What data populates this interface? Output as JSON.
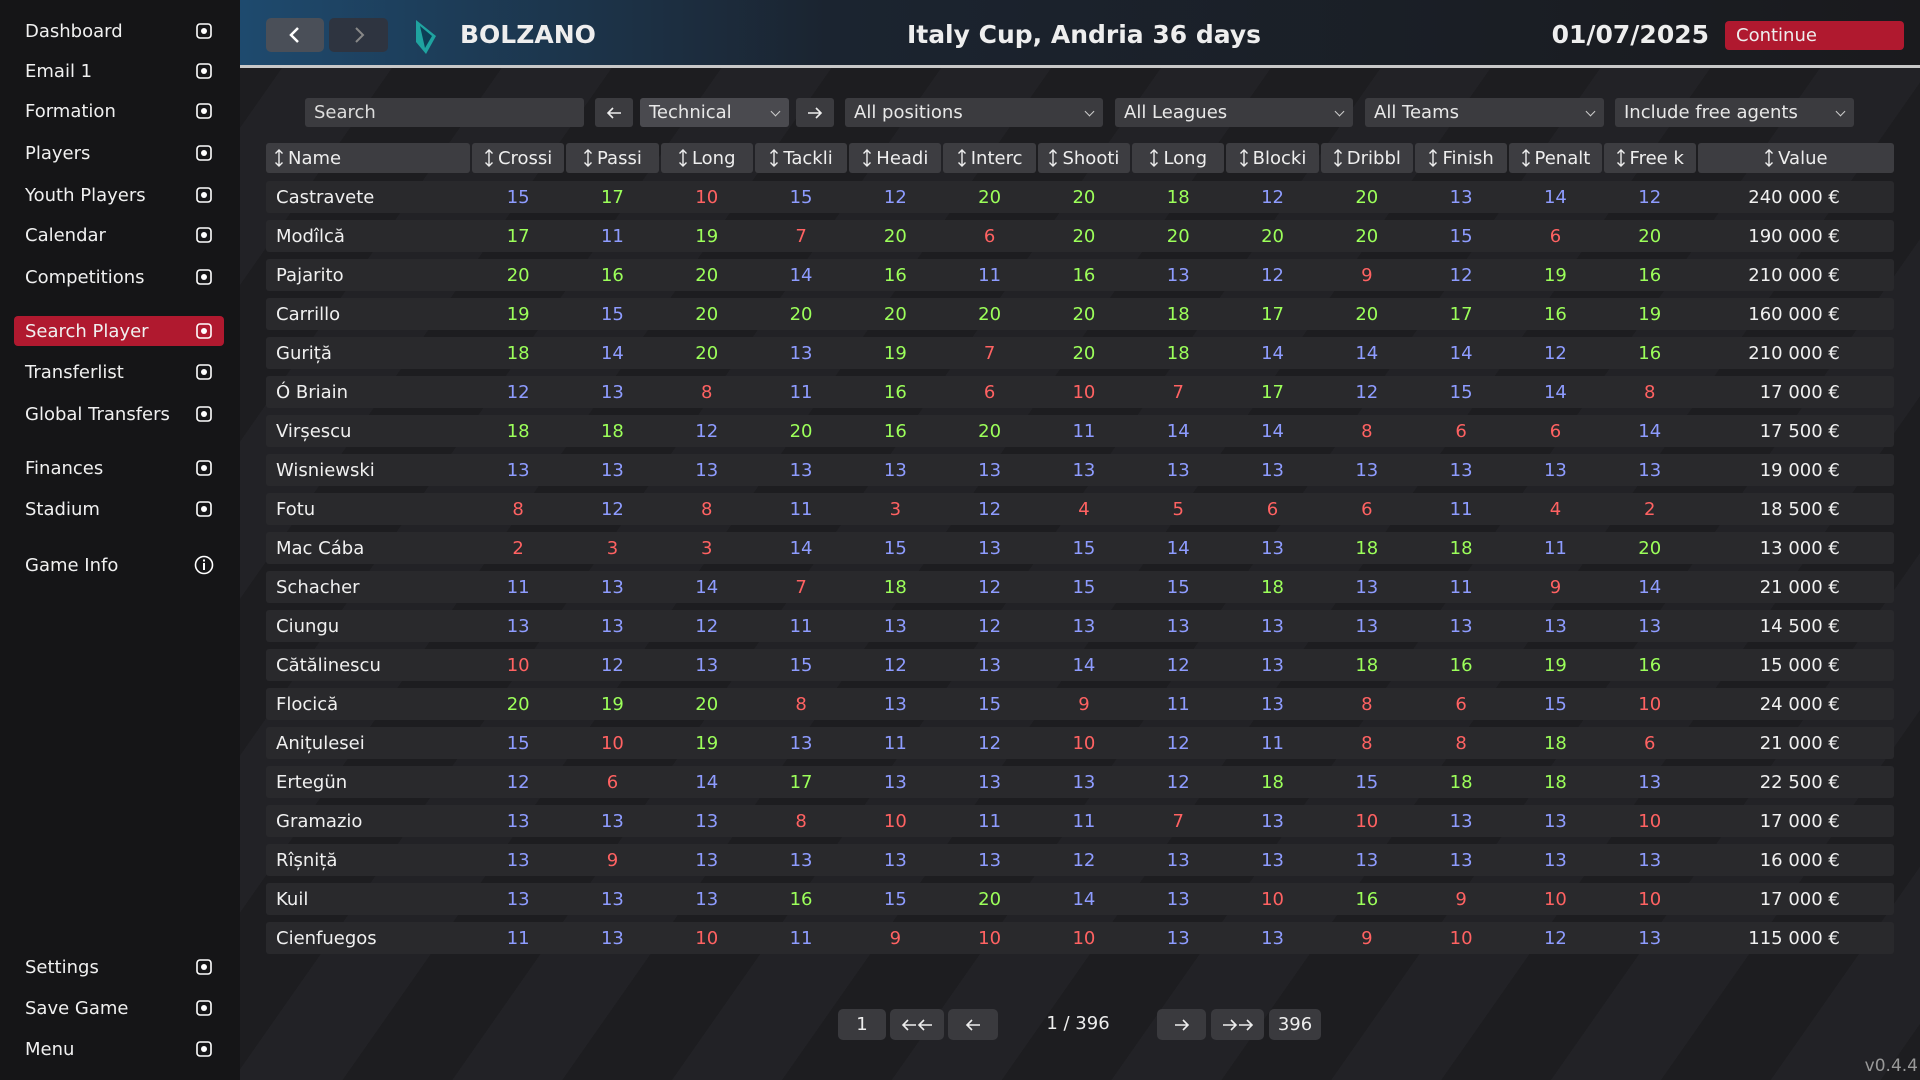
{
  "sidebar": {
    "menu": [
      "Dashboard",
      "Email 1",
      "Formation",
      "Players",
      "Youth Players",
      "Calendar",
      "Competitions",
      "Search Player",
      "Transferlist",
      "Global Transfers",
      "Finances",
      "Stadium",
      "Game Info"
    ],
    "footer": [
      "Settings",
      "Save Game",
      "Menu"
    ]
  },
  "header": {
    "team": "BOLZANO",
    "title": "Italy Cup, Andria 36 days",
    "date": "01/07/2025",
    "continue": "Continue"
  },
  "filters": {
    "search": "Search",
    "view": "Technical",
    "positions": "All positions",
    "leagues": "All Leagues",
    "teams": "All Teams",
    "free_agents": "Include free agents"
  },
  "table": {
    "columns": [
      "Name",
      "Crossi",
      "Passi",
      "Long",
      "Tackli",
      "Headi",
      "Interc",
      "Shooti",
      "Long",
      "Blocki",
      "Dribbl",
      "Finish",
      "Penalt",
      "Free k",
      "Value"
    ],
    "rows": [
      [
        "Castravete",
        15,
        17,
        10,
        15,
        12,
        20,
        20,
        18,
        12,
        20,
        13,
        14,
        12,
        "240 000 €"
      ],
      [
        "Modîlcă",
        17,
        11,
        19,
        7,
        20,
        6,
        20,
        20,
        20,
        20,
        15,
        6,
        20,
        "190 000 €"
      ],
      [
        "Pajarito",
        20,
        16,
        20,
        14,
        16,
        11,
        16,
        13,
        12,
        9,
        12,
        19,
        16,
        "210 000 €"
      ],
      [
        "Carrillo",
        19,
        15,
        20,
        20,
        20,
        20,
        20,
        18,
        17,
        20,
        17,
        16,
        19,
        "160 000 €"
      ],
      [
        "Guriță",
        18,
        14,
        20,
        13,
        19,
        7,
        20,
        18,
        14,
        14,
        14,
        12,
        16,
        "210 000 €"
      ],
      [
        "Ó Briain",
        12,
        13,
        8,
        11,
        16,
        6,
        10,
        7,
        17,
        12,
        15,
        14,
        8,
        "17 000 €"
      ],
      [
        "Virșescu",
        18,
        18,
        12,
        20,
        16,
        20,
        11,
        14,
        14,
        8,
        6,
        6,
        14,
        "17 500 €"
      ],
      [
        "Wisniewski",
        13,
        13,
        13,
        13,
        13,
        13,
        13,
        13,
        13,
        13,
        13,
        13,
        13,
        "19 000 €"
      ],
      [
        "Fotu",
        8,
        12,
        8,
        11,
        3,
        12,
        4,
        5,
        6,
        6,
        11,
        4,
        2,
        "18 500 €"
      ],
      [
        "Mac Cába",
        2,
        3,
        3,
        14,
        15,
        13,
        15,
        14,
        13,
        18,
        18,
        11,
        20,
        "13 000 €"
      ],
      [
        "Schacher",
        11,
        13,
        14,
        7,
        18,
        12,
        15,
        15,
        18,
        13,
        11,
        9,
        14,
        "21 000 €"
      ],
      [
        "Ciungu",
        13,
        13,
        12,
        11,
        13,
        12,
        13,
        13,
        13,
        13,
        13,
        13,
        13,
        "14 500 €"
      ],
      [
        "Cătălinescu",
        10,
        12,
        13,
        15,
        12,
        13,
        14,
        12,
        13,
        18,
        16,
        19,
        16,
        "15 000 €"
      ],
      [
        "Flocică",
        20,
        19,
        20,
        8,
        13,
        15,
        9,
        11,
        13,
        8,
        6,
        15,
        10,
        "24 000 €"
      ],
      [
        "Anițulesei",
        15,
        10,
        19,
        13,
        11,
        12,
        10,
        12,
        11,
        8,
        8,
        18,
        6,
        "21 000 €"
      ],
      [
        "Ertegün",
        12,
        6,
        14,
        17,
        13,
        13,
        13,
        12,
        18,
        15,
        18,
        18,
        13,
        "22 500 €"
      ],
      [
        "Gramazio",
        13,
        13,
        13,
        8,
        10,
        11,
        11,
        7,
        13,
        10,
        13,
        13,
        10,
        "17 000 €"
      ],
      [
        "Rîșniță",
        13,
        9,
        13,
        13,
        13,
        13,
        12,
        13,
        13,
        13,
        13,
        13,
        13,
        "16 000 €"
      ],
      [
        "Kuil",
        13,
        13,
        13,
        16,
        15,
        20,
        14,
        13,
        10,
        16,
        9,
        10,
        10,
        "17 000 €"
      ],
      [
        "Cienfuegos",
        11,
        13,
        10,
        11,
        9,
        10,
        10,
        13,
        13,
        9,
        10,
        12,
        13,
        "115 000 €"
      ]
    ]
  },
  "pagination": {
    "first": 1,
    "status": "1 / 396",
    "last": 396
  },
  "version": "v0.4.4"
}
